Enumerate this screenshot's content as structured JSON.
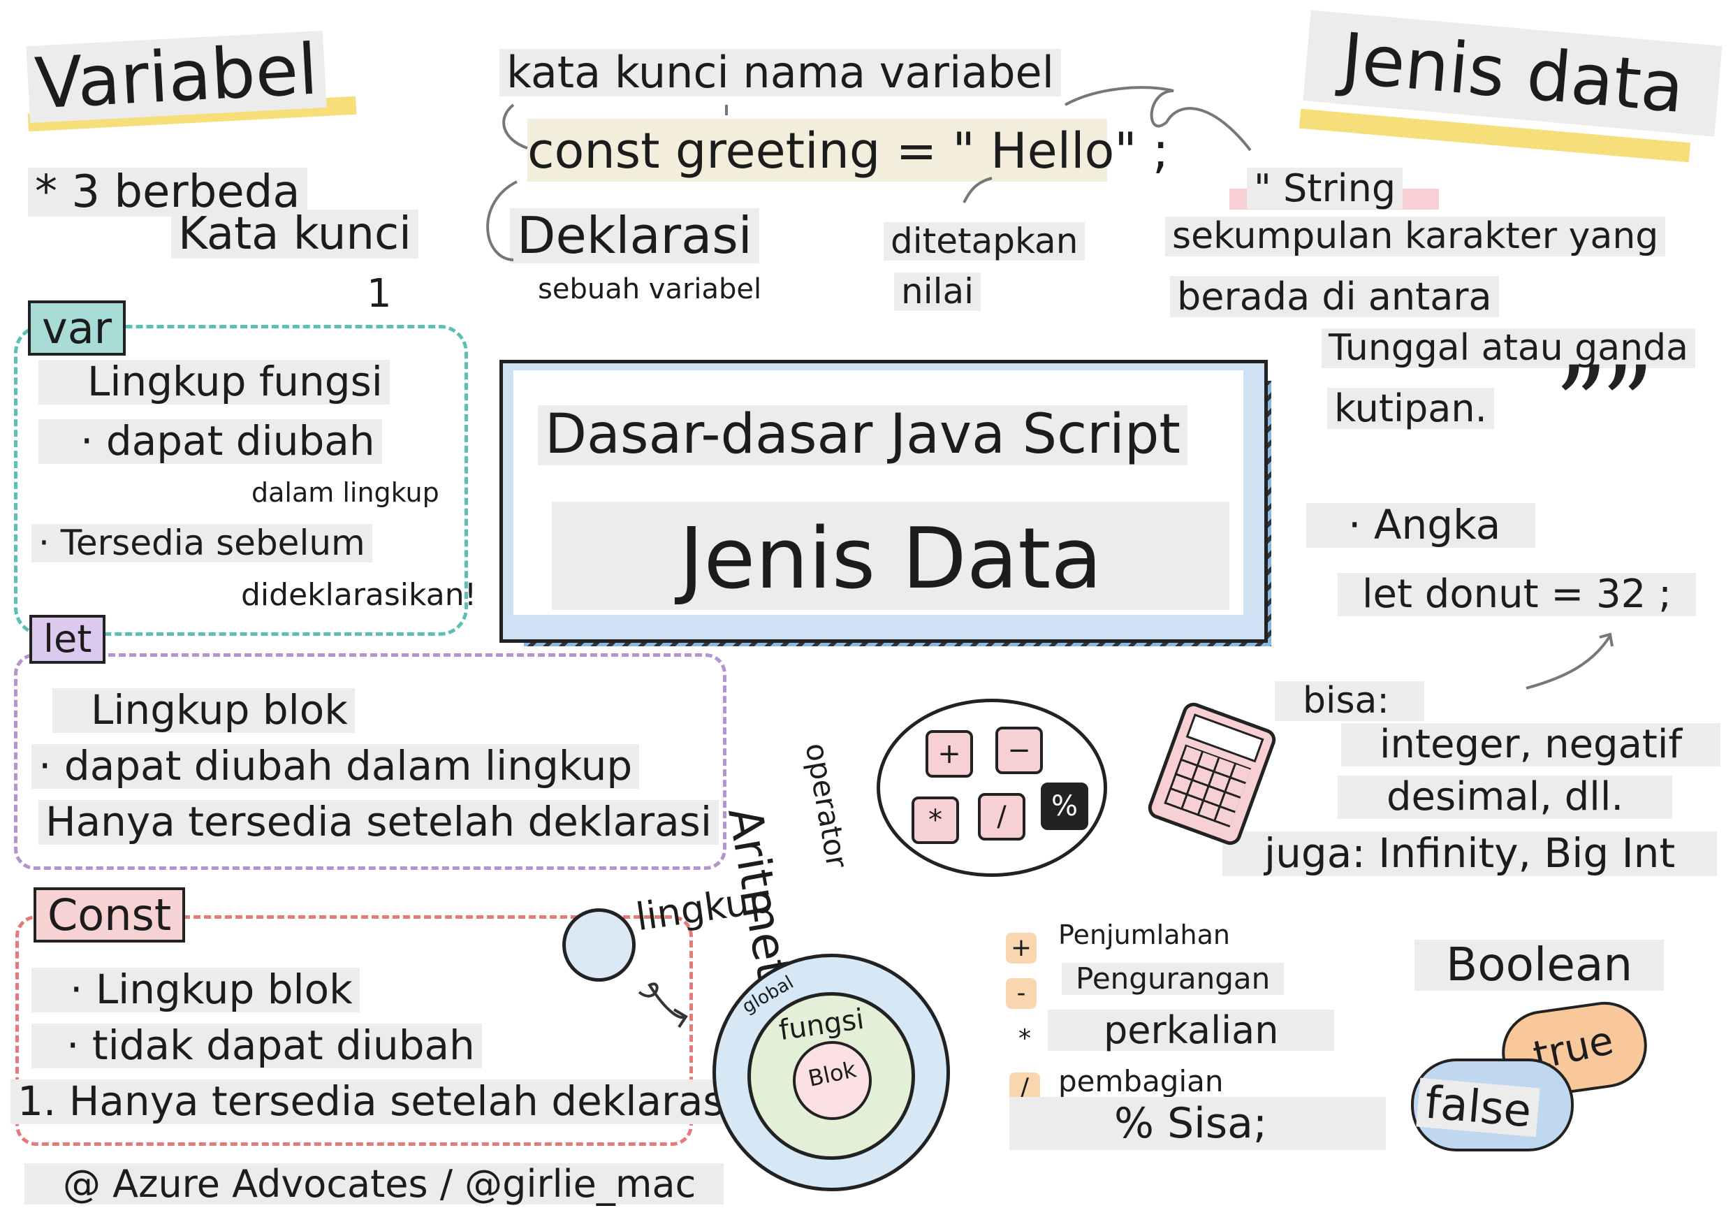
{
  "title": {
    "variables": "Variabel",
    "data_types": "Jenis data"
  },
  "declaration": {
    "keyword_label": "kata kunci nama variabel",
    "code": "const greeting = \" Hello\" ;",
    "declare_title": "Deklarasi",
    "declare_sub": "sebuah variabel",
    "assigned_1": "ditetapkan",
    "assigned_2": "nilai"
  },
  "keywords": {
    "line1": "* 3 berbeda",
    "line2": "Kata kunci",
    "number": "1"
  },
  "var_section": {
    "tag": "var",
    "items": [
      "Lingkup fungsi",
      "· dapat diubah",
      "dalam lingkup",
      "· Tersedia sebelum",
      "dideklarasikan!"
    ]
  },
  "let_section": {
    "tag": "let",
    "items": [
      "Lingkup blok",
      "· dapat diubah dalam lingkup",
      "Hanya tersedia setelah deklarasi"
    ]
  },
  "const_section": {
    "tag": "Const",
    "items": [
      "· Lingkup blok",
      "· tidak dapat diubah",
      "1. Hanya tersedia setelah deklarasi"
    ]
  },
  "center": {
    "title": "Dasar-dasar Java Script",
    "subtitle": "Jenis Data"
  },
  "string_section": {
    "heading": "\" String",
    "lines": [
      "sekumpulan karakter yang",
      "berada di antara",
      "Tunggal atau ganda",
      "kutipan."
    ]
  },
  "number_section": {
    "heading": "· Angka",
    "code": "let donut = 32 ;",
    "can": "bisa:",
    "lines": [
      "integer, negatif",
      "desimal, dll.",
      "juga: Infinity, Big Int"
    ]
  },
  "arithmetic": {
    "title": "Aritmetika",
    "subtitle": "operator",
    "keys": [
      "+",
      "−",
      "*",
      "/",
      "%"
    ],
    "ops": [
      {
        "icon": "+",
        "label": "Penjumlahan"
      },
      {
        "icon": "-",
        "label": "Pengurangan"
      },
      {
        "icon": "*",
        "label": "perkalian"
      },
      {
        "icon": "/",
        "label": "pembagian"
      }
    ],
    "remainder": "% Sisa;"
  },
  "scope": {
    "title": "lingkup",
    "rings": [
      "global",
      "fungsi",
      "Blok"
    ]
  },
  "boolean": {
    "heading": "Boolean",
    "true_label": "true",
    "false_label": "false"
  },
  "credit": "@ Azure Advocates / @girlie_mac"
}
